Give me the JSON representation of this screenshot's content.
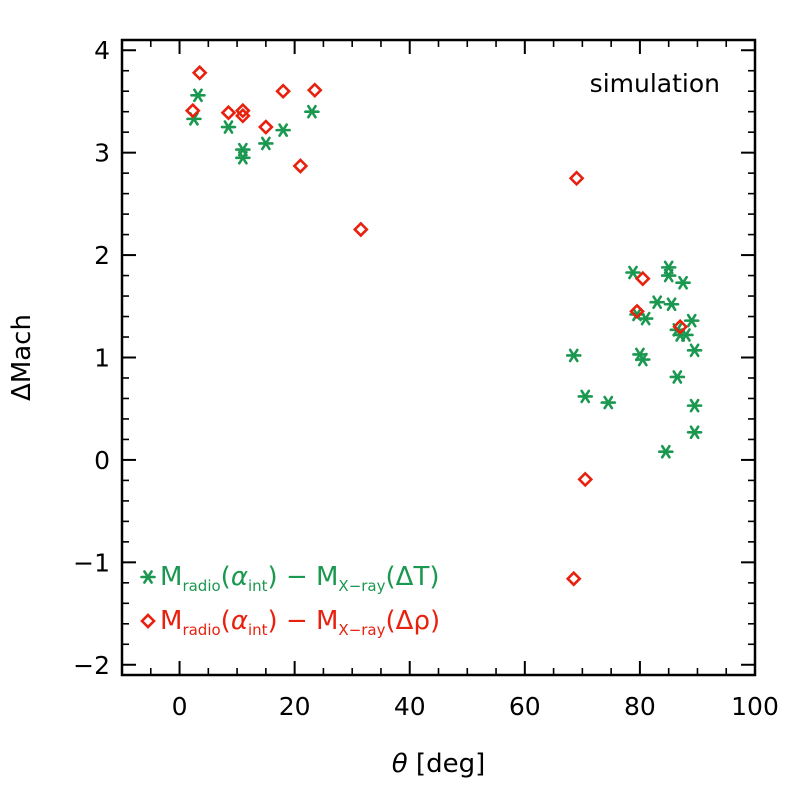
{
  "chart_data": {
    "type": "scatter",
    "title": "",
    "annotation": "simulation",
    "xlabel": {
      "symbol": "θ",
      "rest": " [deg]"
    },
    "ylabel": "ΔMach",
    "xlim": [
      -10,
      100
    ],
    "ylim": [
      -2.1,
      4.1
    ],
    "xticks": [
      0,
      20,
      40,
      60,
      80,
      100
    ],
    "xtick_labels": [
      "0",
      "20",
      "40",
      "60",
      "80",
      "100"
    ],
    "yticks": [
      -2,
      -1,
      0,
      1,
      2,
      3,
      4
    ],
    "ytick_labels": [
      "−2",
      "−1",
      "0",
      "1",
      "2",
      "3",
      "4"
    ],
    "colors": {
      "green": "#1a9850",
      "red": "#e8210f"
    },
    "legend": {
      "placement": "bottom-left",
      "entries": [
        {
          "series": "temperature",
          "marker": "asterisk",
          "text": [
            "M",
            "radio",
            "(",
            "α",
            "int",
            ")  −  M",
            "X−ray",
            "(ΔT)"
          ]
        },
        {
          "series": "density",
          "marker": "diamond",
          "text": [
            "M",
            "radio",
            "(",
            "α",
            "int",
            ")  −  M",
            "X−ray",
            "(Δρ)"
          ]
        }
      ]
    },
    "series": [
      {
        "name": "temperature",
        "marker": "asterisk",
        "color": "#1a9850",
        "x": [
          2.5,
          3.2,
          8.5,
          11,
          11,
          15,
          18,
          23,
          68.5,
          70.5,
          74.5,
          78.8,
          79.5,
          80,
          80.5,
          81,
          83,
          84.5,
          85,
          85,
          85.5,
          86.5,
          86.5,
          87,
          87.5,
          88,
          89,
          89.5,
          89.5,
          89.5
        ],
        "y": [
          3.33,
          3.56,
          3.25,
          3.03,
          2.95,
          3.09,
          3.22,
          3.4,
          1.02,
          0.62,
          0.56,
          1.83,
          1.42,
          1.03,
          0.98,
          1.38,
          1.54,
          0.08,
          1.88,
          1.8,
          1.52,
          0.81,
          1.27,
          1.22,
          1.73,
          1.22,
          1.36,
          1.07,
          0.53,
          0.27
        ]
      },
      {
        "name": "density",
        "marker": "diamond",
        "color": "#e8210f",
        "x": [
          2.3,
          3.5,
          8.5,
          11,
          11,
          15,
          18,
          21,
          23.5,
          31.5,
          68.5,
          69,
          70.5,
          79.5,
          80.5,
          87
        ],
        "y": [
          3.41,
          3.78,
          3.39,
          3.41,
          3.36,
          3.25,
          3.6,
          2.87,
          3.61,
          2.25,
          -1.16,
          2.75,
          -0.19,
          1.45,
          1.77,
          1.3
        ]
      }
    ]
  }
}
